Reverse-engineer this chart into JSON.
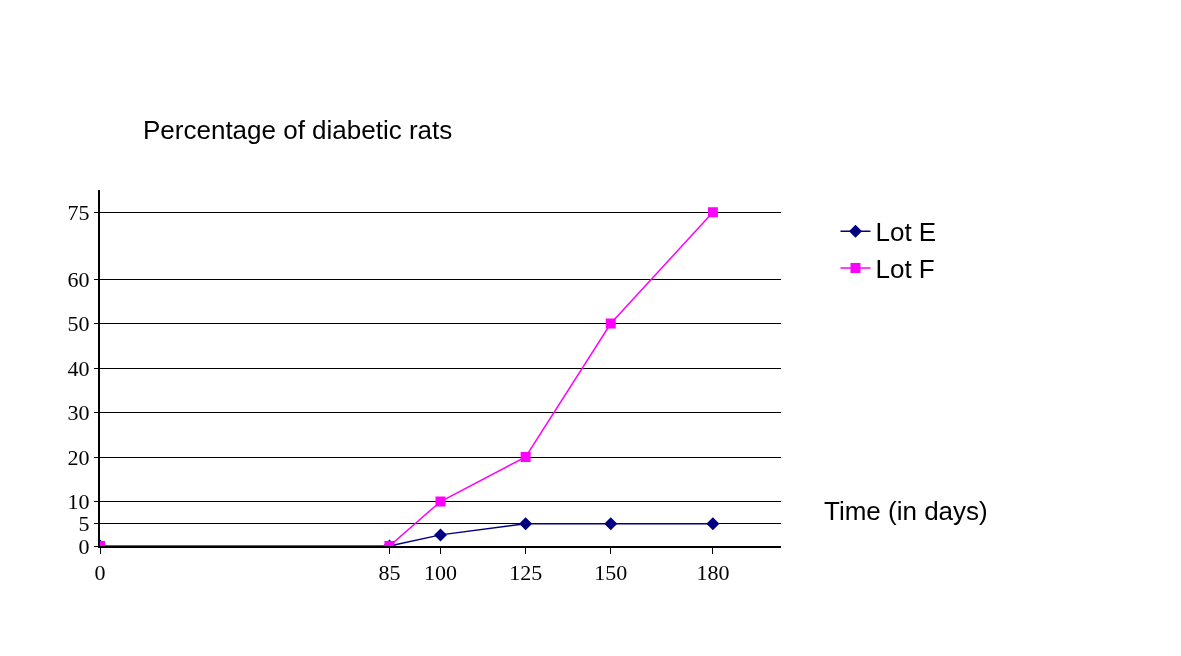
{
  "chart_data": {
    "type": "line",
    "ylabel": "Percentage of diabetic rats",
    "xlabel": "Time (in days)",
    "xlim": [
      0,
      200
    ],
    "xticks": [
      0,
      85,
      100,
      125,
      150,
      180
    ],
    "ylim": [
      0,
      80
    ],
    "yticks": [
      0,
      5,
      10,
      20,
      30,
      40,
      50,
      60,
      75
    ],
    "grid": "y",
    "legend": "top right",
    "series": [
      {
        "name": "Lot E",
        "color": "#000080",
        "marker": "diamond",
        "x": [
          0,
          85,
          100,
          125,
          150,
          180
        ],
        "values": [
          0,
          0,
          2.5,
          5,
          5,
          5
        ]
      },
      {
        "name": "Lot F",
        "color": "#ff00ff",
        "marker": "square",
        "x": [
          0,
          85,
          100,
          125,
          150,
          180
        ],
        "values": [
          0,
          0,
          10,
          20,
          50,
          75
        ]
      }
    ]
  }
}
